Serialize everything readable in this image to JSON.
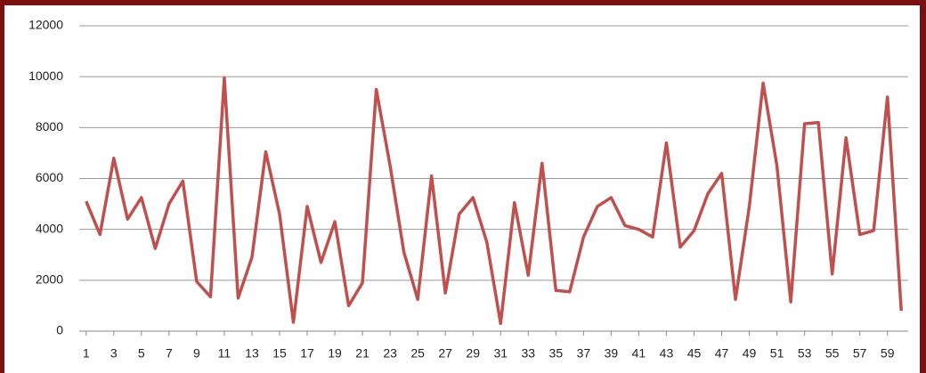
{
  "chart_data": {
    "type": "line",
    "x": [
      1,
      2,
      3,
      4,
      5,
      6,
      7,
      8,
      9,
      10,
      11,
      12,
      13,
      14,
      15,
      16,
      17,
      18,
      19,
      20,
      21,
      22,
      23,
      24,
      25,
      26,
      27,
      28,
      29,
      30,
      31,
      32,
      33,
      34,
      35,
      36,
      37,
      38,
      39,
      40,
      41,
      42,
      43,
      44,
      45,
      46,
      47,
      48,
      49,
      50,
      51,
      52,
      53,
      54,
      55,
      56,
      57,
      58,
      59,
      60
    ],
    "xlim": [
      0.5,
      60.5
    ],
    "xticks": [
      1,
      3,
      5,
      7,
      9,
      11,
      13,
      15,
      17,
      19,
      21,
      23,
      25,
      27,
      29,
      31,
      33,
      35,
      37,
      39,
      41,
      43,
      45,
      47,
      49,
      51,
      53,
      55,
      57,
      59
    ],
    "series": [
      {
        "color": "#c0504d",
        "values": [
          5100,
          3800,
          6800,
          4400,
          5250,
          3250,
          5000,
          5900,
          1950,
          1350,
          9950,
          1300,
          2900,
          7050,
          4600,
          350,
          4900,
          2700,
          4300,
          1000,
          1900,
          9500,
          6500,
          3100,
          1250,
          6100,
          1500,
          4600,
          5250,
          3500,
          300,
          5050,
          2200,
          6600,
          1600,
          1550,
          3700,
          4900,
          5250,
          4150,
          4000,
          3700,
          7400,
          3300,
          3950,
          5400,
          6200,
          1250,
          4900,
          9750,
          6500,
          1150,
          8150,
          8200,
          2250,
          7600,
          3800,
          3950,
          9200,
          800
        ]
      }
    ],
    "ylim": [
      0,
      12000
    ],
    "yticks": [
      0,
      2000,
      4000,
      6000,
      8000,
      10000,
      12000
    ],
    "grid": true
  }
}
